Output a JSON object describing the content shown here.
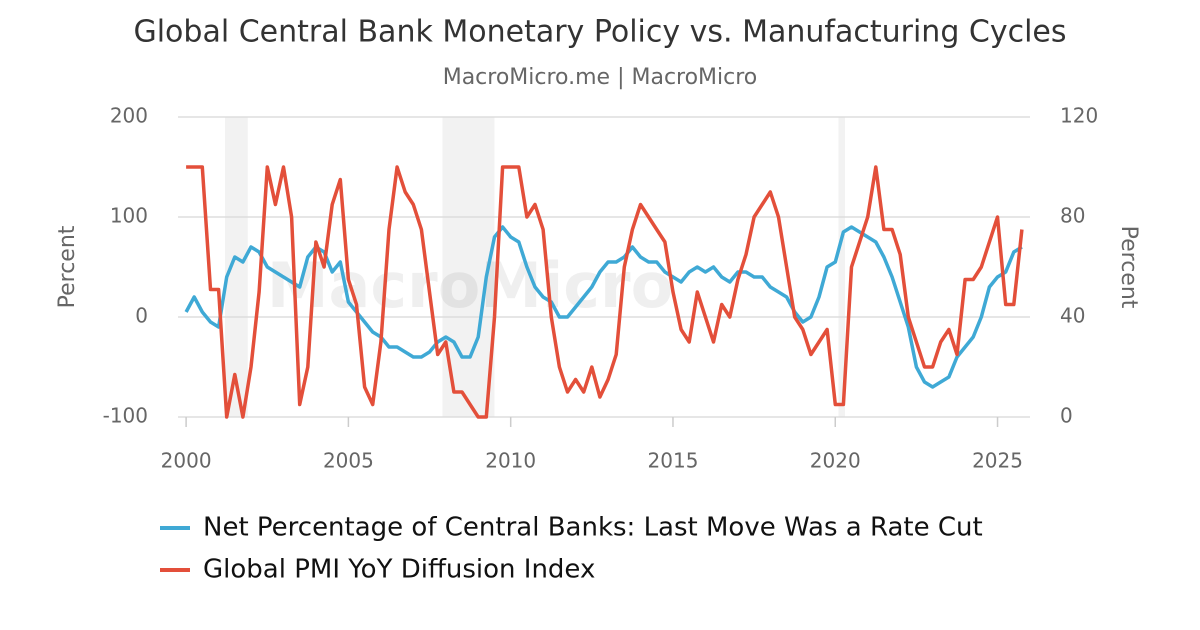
{
  "chart_data": {
    "type": "line",
    "title": "Global Central Bank Monetary Policy vs. Manufacturing Cycles",
    "subtitle": "MacroMicro.me | MacroMicro",
    "watermark": "MacroMicro",
    "y_label": "Percent",
    "y2_label": "Percent",
    "xlim": [
      1999.75,
      2026
    ],
    "xticks": [
      2000,
      2005,
      2010,
      2015,
      2020,
      2025
    ],
    "ylim": [
      -100,
      200
    ],
    "yticks": [
      -100,
      0,
      100,
      200
    ],
    "y2lim": [
      0,
      120
    ],
    "y2ticks": [
      0,
      40,
      80,
      120
    ],
    "grid": true,
    "shaded_periods": [
      [
        2001.2,
        2001.9
      ],
      [
        2007.9,
        2009.5
      ],
      [
        2020.1,
        2020.3
      ]
    ],
    "shade_color": "#f2f2f2",
    "legend": "bottom",
    "x": [
      2000,
      2000.25,
      2000.5,
      2000.75,
      2001,
      2001.25,
      2001.5,
      2001.75,
      2002,
      2002.25,
      2002.5,
      2002.75,
      2003,
      2003.25,
      2003.5,
      2003.75,
      2004,
      2004.25,
      2004.5,
      2004.75,
      2005,
      2005.25,
      2005.5,
      2005.75,
      2006,
      2006.25,
      2006.5,
      2006.75,
      2007,
      2007.25,
      2007.5,
      2007.75,
      2008,
      2008.25,
      2008.5,
      2008.75,
      2009,
      2009.25,
      2009.5,
      2009.75,
      2010,
      2010.25,
      2010.5,
      2010.75,
      2011,
      2011.25,
      2011.5,
      2011.75,
      2012,
      2012.25,
      2012.5,
      2012.75,
      2013,
      2013.25,
      2013.5,
      2013.75,
      2014,
      2014.25,
      2014.5,
      2014.75,
      2015,
      2015.25,
      2015.5,
      2015.75,
      2016,
      2016.25,
      2016.5,
      2016.75,
      2017,
      2017.25,
      2017.5,
      2017.75,
      2018,
      2018.25,
      2018.5,
      2018.75,
      2019,
      2019.25,
      2019.5,
      2019.75,
      2020,
      2020.25,
      2020.5,
      2020.75,
      2021,
      2021.25,
      2021.5,
      2021.75,
      2022,
      2022.25,
      2022.5,
      2022.75,
      2023,
      2023.25,
      2023.5,
      2023.75,
      2024,
      2024.25,
      2024.5,
      2024.75,
      2025,
      2025.25,
      2025.5,
      2025.75
    ],
    "series": [
      {
        "name": "Net Percentage of Central Banks: Last Move Was a Rate Cut",
        "color": "#3fa9d5",
        "values": [
          5,
          20,
          5,
          -5,
          -10,
          40,
          60,
          55,
          70,
          65,
          50,
          45,
          40,
          35,
          30,
          60,
          70,
          65,
          45,
          55,
          15,
          5,
          -5,
          -15,
          -20,
          -30,
          -30,
          -35,
          -40,
          -40,
          -35,
          -25,
          -20,
          -25,
          -40,
          -40,
          -20,
          40,
          80,
          90,
          80,
          75,
          50,
          30,
          20,
          15,
          0,
          0,
          10,
          20,
          30,
          45,
          55,
          55,
          60,
          70,
          60,
          55,
          55,
          45,
          40,
          35,
          45,
          50,
          45,
          50,
          40,
          35,
          45,
          45,
          40,
          40,
          30,
          25,
          20,
          5,
          -5,
          0,
          20,
          50,
          55,
          85,
          90,
          85,
          80,
          75,
          60,
          40,
          15,
          -10,
          -50,
          -65,
          -70,
          -65,
          -60,
          -40,
          -30,
          -20,
          0,
          30,
          40,
          45,
          65,
          70
        ]
      },
      {
        "name": "Global PMI YoY Diffusion Index",
        "color": "#e34f3a",
        "axis": "y2",
        "values": [
          100,
          100,
          100,
          51,
          51,
          0,
          17,
          0,
          20,
          50,
          100,
          85,
          100,
          80,
          5,
          20,
          70,
          60,
          85,
          95,
          55,
          45,
          12,
          5,
          30,
          75,
          100,
          90,
          85,
          75,
          50,
          25,
          30,
          10,
          10,
          5,
          0,
          0,
          40,
          100,
          100,
          100,
          80,
          85,
          75,
          40,
          20,
          10,
          15,
          10,
          20,
          8,
          15,
          25,
          60,
          75,
          85,
          80,
          75,
          70,
          50,
          35,
          30,
          50,
          40,
          30,
          45,
          40,
          55,
          65,
          80,
          85,
          90,
          80,
          60,
          40,
          35,
          25,
          30,
          35,
          5,
          5,
          60,
          70,
          80,
          100,
          75,
          75,
          65,
          40,
          30,
          20,
          20,
          30,
          35,
          25,
          55,
          55,
          60,
          70,
          80,
          45,
          45,
          75
        ]
      }
    ]
  }
}
